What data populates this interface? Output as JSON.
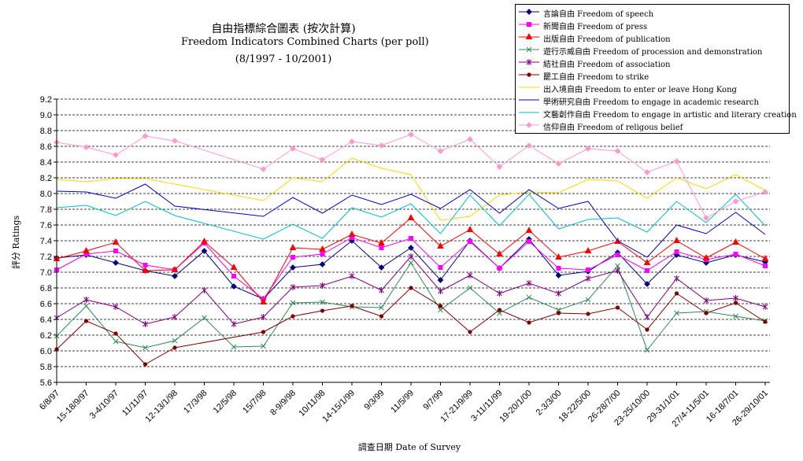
{
  "title": "自由指標綜合圖表 (按次計算)",
  "subtitle": "Freedom Indicators Combined Charts (per poll)",
  "period": "(8/1997 - 10/2001)",
  "chart_data": {
    "type": "line",
    "xlabel": "調查日期 Date of Survey",
    "ylabel": "評分 Ratings",
    "ylim": [
      5.6,
      9.2
    ],
    "yticks": [
      "5.6",
      "5.8",
      "6.0",
      "6.2",
      "6.4",
      "6.6",
      "6.8",
      "7.0",
      "7.2",
      "7.4",
      "7.6",
      "7.8",
      "8.0",
      "8.2",
      "8.4",
      "8.6",
      "8.8",
      "9.0",
      "9.2"
    ],
    "grid": "horizontal dashed",
    "legend_position": "top-right",
    "categories": [
      "6/8/97",
      "15-18/9/97",
      "3-4/10/97",
      "11/11/97",
      "12-13/1/98",
      "17/3/98",
      "12/5/98",
      "15/7/98",
      "8-9/9/98",
      "10/11/98",
      "14-15/1/99",
      "9/3/99",
      "11/5/99",
      "9/7/99",
      "17-21/9/99",
      "3-11/11/99",
      "19-20/1/00",
      "2-3/3/00",
      "18-22/5/00",
      "26-28/7/00",
      "23-25/10/00",
      "29-31/1/01",
      "27/4-11/5/01",
      "16-18/7/01",
      "26-29/10/01"
    ],
    "x_positions": [
      0,
      1,
      2,
      3,
      4,
      5,
      6,
      7,
      8,
      9,
      10,
      11,
      12,
      13,
      14,
      15,
      16,
      17,
      18,
      19,
      20,
      21,
      22,
      23,
      24
    ],
    "series": [
      {
        "name": "言論自由 Freedom of speech",
        "color": "#000080",
        "marker": "diamond",
        "points": [
          [
            0,
            7.18
          ],
          [
            1,
            7.22
          ],
          [
            2,
            7.12
          ],
          [
            3,
            7.02
          ],
          [
            4,
            6.95
          ],
          [
            5,
            7.27
          ],
          [
            6,
            6.82
          ],
          [
            7,
            6.66
          ],
          [
            8,
            7.06
          ],
          [
            9,
            7.1
          ],
          [
            10,
            7.4
          ],
          [
            11,
            7.06
          ],
          [
            12,
            7.31
          ],
          [
            13,
            6.9
          ],
          [
            14,
            7.4
          ],
          [
            15,
            7.05
          ],
          [
            16,
            7.42
          ],
          [
            17,
            6.96
          ],
          [
            18,
            7.01
          ],
          [
            19,
            7.25
          ],
          [
            20,
            6.85
          ],
          [
            21,
            7.22
          ],
          [
            22,
            7.12
          ],
          [
            23,
            7.22
          ],
          [
            24,
            7.13
          ]
        ]
      },
      {
        "name": "新聞自由 Freedom of press",
        "color": "#ff00ff",
        "marker": "square",
        "points": [
          [
            0,
            7.03
          ],
          [
            1,
            7.23
          ],
          [
            2,
            7.27
          ],
          [
            3,
            7.09
          ],
          [
            4,
            7.03
          ],
          [
            5,
            7.37
          ],
          [
            6,
            6.95
          ],
          [
            7,
            6.66
          ],
          [
            8,
            7.19
          ],
          [
            9,
            7.23
          ],
          [
            10,
            7.44
          ],
          [
            11,
            7.31
          ],
          [
            12,
            7.43
          ],
          [
            13,
            7.06
          ],
          [
            14,
            7.39
          ],
          [
            15,
            7.05
          ],
          [
            16,
            7.39
          ],
          [
            17,
            7.05
          ],
          [
            18,
            7.03
          ],
          [
            19,
            7.22
          ],
          [
            20,
            7.02
          ],
          [
            21,
            7.26
          ],
          [
            22,
            7.16
          ],
          [
            23,
            7.23
          ],
          [
            24,
            7.08
          ]
        ]
      },
      {
        "name": "出版自由 Freedom of publication",
        "color": "#ff0000",
        "marker": "triangle",
        "points": [
          [
            0,
            7.17
          ],
          [
            1,
            7.27
          ],
          [
            2,
            7.38
          ],
          [
            3,
            7.02
          ],
          [
            4,
            7.03
          ],
          [
            5,
            7.39
          ],
          [
            6,
            7.06
          ],
          [
            7,
            6.62
          ],
          [
            8,
            7.31
          ],
          [
            9,
            7.29
          ],
          [
            10,
            7.48
          ],
          [
            11,
            7.37
          ],
          [
            12,
            7.69
          ],
          [
            13,
            7.33
          ],
          [
            14,
            7.54
          ],
          [
            15,
            7.23
          ],
          [
            16,
            7.53
          ],
          [
            17,
            7.19
          ],
          [
            18,
            7.27
          ],
          [
            19,
            7.39
          ],
          [
            20,
            7.12
          ],
          [
            21,
            7.4
          ],
          [
            22,
            7.18
          ],
          [
            23,
            7.38
          ],
          [
            24,
            7.17
          ]
        ]
      },
      {
        "name": "遊行示威自由 Freedom of procession and demonstration",
        "color": "#2e8b57",
        "marker": "x",
        "points": [
          [
            0,
            6.19
          ],
          [
            1,
            6.57
          ],
          [
            2,
            6.12
          ],
          [
            3,
            6.04
          ],
          [
            4,
            6.13
          ],
          [
            5,
            6.42
          ],
          [
            6,
            6.05
          ],
          [
            7,
            6.06
          ],
          [
            8,
            6.61
          ],
          [
            9,
            6.62
          ],
          [
            10,
            6.56
          ],
          [
            11,
            6.55
          ],
          [
            12,
            7.12
          ],
          [
            13,
            6.52
          ],
          [
            14,
            6.8
          ],
          [
            15,
            6.48
          ],
          [
            16,
            6.68
          ],
          [
            17,
            6.52
          ],
          [
            18,
            6.65
          ],
          [
            19,
            7.08
          ],
          [
            20,
            6.01
          ],
          [
            21,
            6.48
          ],
          [
            22,
            6.5
          ],
          [
            23,
            6.44
          ],
          [
            24,
            6.38
          ]
        ]
      },
      {
        "name": "結社自由 Freedom of association",
        "color": "#800080",
        "marker": "star",
        "points": [
          [
            0,
            6.42
          ],
          [
            1,
            6.65
          ],
          [
            2,
            6.56
          ],
          [
            3,
            6.34
          ],
          [
            4,
            6.43
          ],
          [
            5,
            6.77
          ],
          [
            6,
            6.34
          ],
          [
            7,
            6.43
          ],
          [
            8,
            6.81
          ],
          [
            9,
            6.83
          ],
          [
            10,
            6.95
          ],
          [
            11,
            6.77
          ],
          [
            12,
            7.2
          ],
          [
            13,
            6.76
          ],
          [
            14,
            6.96
          ],
          [
            15,
            6.73
          ],
          [
            16,
            6.86
          ],
          [
            17,
            6.73
          ],
          [
            18,
            6.92
          ],
          [
            19,
            7.02
          ],
          [
            20,
            6.43
          ],
          [
            21,
            6.92
          ],
          [
            22,
            6.64
          ],
          [
            23,
            6.67
          ],
          [
            24,
            6.56
          ]
        ]
      },
      {
        "name": "罷工自由 Freedom to strike",
        "color": "#800000",
        "marker": "dot",
        "points": [
          [
            0,
            6.02
          ],
          [
            1,
            6.38
          ],
          [
            2,
            6.22
          ],
          [
            3,
            5.83
          ],
          [
            4,
            6.04
          ],
          [
            7,
            6.24
          ],
          [
            8,
            6.44
          ],
          [
            9,
            6.51
          ],
          [
            10,
            6.57
          ],
          [
            11,
            6.44
          ],
          [
            12,
            6.8
          ],
          [
            13,
            6.57
          ],
          [
            14,
            6.24
          ],
          [
            15,
            6.52
          ],
          [
            16,
            6.36
          ],
          [
            17,
            6.48
          ],
          [
            18,
            6.47
          ],
          [
            19,
            6.55
          ],
          [
            20,
            6.27
          ],
          [
            21,
            6.73
          ],
          [
            22,
            6.48
          ],
          [
            23,
            6.61
          ],
          [
            24,
            6.37
          ]
        ]
      },
      {
        "name": "出入境自由 Freedom to enter or leave Hong Kong",
        "color": "#ffd700",
        "marker": "none",
        "points": [
          [
            0,
            8.18
          ],
          [
            1,
            8.15
          ],
          [
            2,
            8.19
          ],
          [
            3,
            8.19
          ],
          [
            4,
            8.12
          ],
          [
            7,
            7.91
          ],
          [
            8,
            8.2
          ],
          [
            9,
            8.15
          ],
          [
            10,
            8.45
          ],
          [
            11,
            8.32
          ],
          [
            12,
            8.24
          ],
          [
            13,
            7.66
          ],
          [
            14,
            7.71
          ],
          [
            15,
            7.98
          ],
          [
            16,
            8.02
          ],
          [
            17,
            8.01
          ],
          [
            18,
            8.18
          ],
          [
            19,
            8.16
          ],
          [
            20,
            7.94
          ],
          [
            21,
            8.2
          ],
          [
            22,
            8.06
          ],
          [
            23,
            8.24
          ],
          [
            24,
            8.04
          ]
        ]
      },
      {
        "name": "學術研究自由 Freedom to engage in academic research",
        "color": "#0000cd",
        "marker": "none",
        "points": [
          [
            0,
            8.03
          ],
          [
            1,
            8.02
          ],
          [
            2,
            7.94
          ],
          [
            3,
            8.12
          ],
          [
            4,
            7.84
          ],
          [
            7,
            7.71
          ],
          [
            8,
            7.95
          ],
          [
            9,
            7.75
          ],
          [
            10,
            7.98
          ],
          [
            11,
            7.86
          ],
          [
            12,
            7.99
          ],
          [
            13,
            7.81
          ],
          [
            14,
            8.05
          ],
          [
            15,
            7.75
          ],
          [
            16,
            8.05
          ],
          [
            17,
            7.81
          ],
          [
            18,
            7.9
          ],
          [
            19,
            7.4
          ],
          [
            20,
            7.19
          ],
          [
            21,
            7.6
          ],
          [
            22,
            7.49
          ],
          [
            23,
            7.76
          ],
          [
            24,
            7.48
          ]
        ]
      },
      {
        "name": "文藝創作自由 Freedom to engage in artistic and literary creation",
        "color": "#00bcd4",
        "marker": "none",
        "points": [
          [
            0,
            7.82
          ],
          [
            1,
            7.85
          ],
          [
            2,
            7.72
          ],
          [
            3,
            7.9
          ],
          [
            4,
            7.72
          ],
          [
            7,
            7.42
          ],
          [
            8,
            7.61
          ],
          [
            9,
            7.43
          ],
          [
            10,
            7.82
          ],
          [
            11,
            7.7
          ],
          [
            12,
            7.87
          ],
          [
            13,
            7.49
          ],
          [
            14,
            7.98
          ],
          [
            15,
            7.59
          ],
          [
            16,
            7.99
          ],
          [
            17,
            7.55
          ],
          [
            18,
            7.67
          ],
          [
            19,
            7.69
          ],
          [
            20,
            7.51
          ],
          [
            21,
            7.9
          ],
          [
            22,
            7.63
          ],
          [
            23,
            7.99
          ],
          [
            24,
            7.59
          ]
        ]
      },
      {
        "name": "信仰自由 Freedom of religous belief",
        "color": "#ff99cc",
        "marker": "diamond",
        "points": [
          [
            0,
            8.65
          ],
          [
            1,
            8.59
          ],
          [
            2,
            8.49
          ],
          [
            3,
            8.73
          ],
          [
            4,
            8.67
          ],
          [
            7,
            8.31
          ],
          [
            8,
            8.57
          ],
          [
            9,
            8.43
          ],
          [
            10,
            8.66
          ],
          [
            11,
            8.61
          ],
          [
            12,
            8.75
          ],
          [
            13,
            8.54
          ],
          [
            14,
            8.69
          ],
          [
            15,
            8.34
          ],
          [
            16,
            8.61
          ],
          [
            17,
            8.38
          ],
          [
            18,
            8.57
          ],
          [
            19,
            8.54
          ],
          [
            20,
            8.27
          ],
          [
            21,
            8.41
          ],
          [
            22,
            7.69
          ],
          [
            23,
            7.9
          ],
          [
            24,
            8.02
          ]
        ]
      }
    ]
  }
}
